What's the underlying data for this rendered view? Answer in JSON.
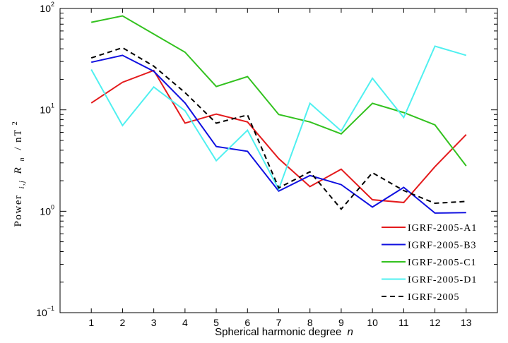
{
  "chart_data": {
    "type": "line",
    "xlabel": "Spherical harmonic degree",
    "xlabel_var": "n",
    "ylabel_parts": {
      "prefix": "Power",
      "sub1": "i,j",
      "mid": "R",
      "sub2": "n",
      "suffix": "/ nT",
      "sup": "2"
    },
    "y_scale": "log",
    "ylim": [
      0.1,
      100
    ],
    "y_ticks": [
      {
        "value": 0.1,
        "base": "10",
        "exp": "−1"
      },
      {
        "value": 1,
        "base": "10",
        "exp": "0"
      },
      {
        "value": 10,
        "base": "10",
        "exp": "1"
      },
      {
        "value": 100,
        "base": "10",
        "exp": "2"
      }
    ],
    "xlim": [
      0,
      14
    ],
    "x": [
      1,
      2,
      3,
      4,
      5,
      6,
      7,
      8,
      9,
      10,
      11,
      12,
      13
    ],
    "x_tick_labels": [
      "1",
      "2",
      "3",
      "4",
      "5",
      "6",
      "7",
      "8",
      "9",
      "10",
      "11",
      "12",
      "13"
    ],
    "grid": false,
    "legend_position": "bottom-right",
    "series": [
      {
        "name": "IGRF-2005-A1",
        "color": "#e41a1c",
        "dash": "solid",
        "values": [
          11.7,
          18.7,
          24.5,
          7.4,
          9.1,
          7.6,
          3.3,
          1.75,
          2.6,
          1.3,
          1.22,
          2.75,
          5.7
        ]
      },
      {
        "name": "IGRF-2005-B3",
        "color": "#1010e0",
        "dash": "solid",
        "values": [
          29.5,
          34.5,
          24.0,
          11.7,
          4.35,
          3.9,
          1.58,
          2.25,
          1.83,
          1.1,
          1.72,
          0.96,
          0.97
        ]
      },
      {
        "name": "IGRF-2005-C1",
        "color": "#33c21f",
        "dash": "solid",
        "values": [
          73.0,
          84.5,
          56.0,
          37.0,
          17.0,
          21.3,
          9.0,
          7.6,
          5.8,
          11.6,
          9.4,
          7.1,
          2.8
        ]
      },
      {
        "name": "IGRF-2005-D1",
        "color": "#4ff0f0",
        "dash": "solid",
        "values": [
          25.0,
          7.0,
          16.8,
          9.8,
          3.15,
          6.3,
          1.65,
          11.6,
          6.2,
          20.5,
          8.4,
          42.5,
          34.5
        ]
      },
      {
        "name": "IGRF-2005",
        "color": "#000000",
        "dash": "dashed",
        "values": [
          32.5,
          41.0,
          27.0,
          14.8,
          7.4,
          8.9,
          1.7,
          2.45,
          1.05,
          2.4,
          1.6,
          1.2,
          1.25
        ]
      }
    ]
  }
}
